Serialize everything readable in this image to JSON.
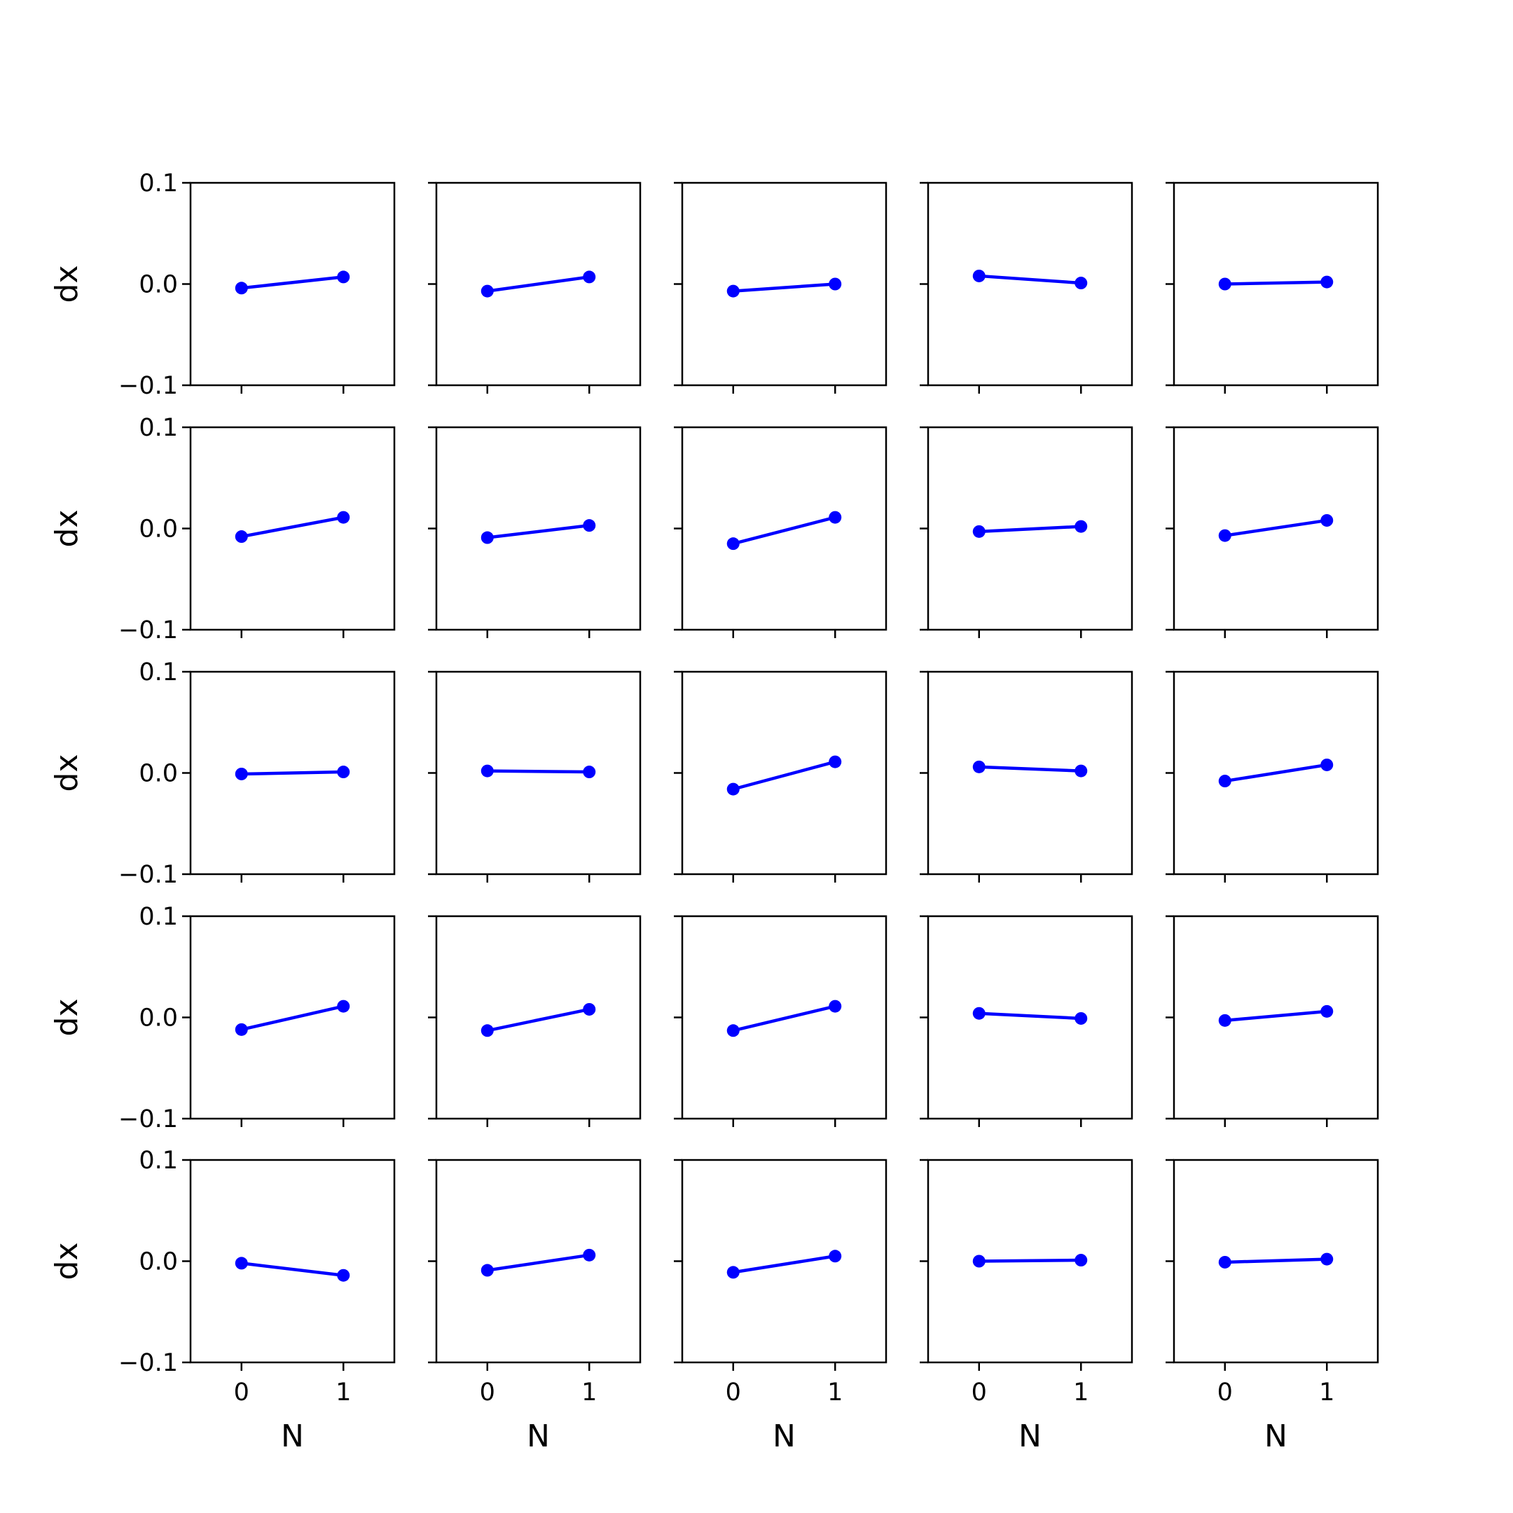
{
  "chart_data": {
    "type": "line",
    "layout": "5x5 grid of small multiples",
    "xlabel": "N",
    "ylabel": "dx",
    "x": [
      0,
      1
    ],
    "xticks": [
      0,
      1
    ],
    "xtick_labels": [
      "0",
      "1"
    ],
    "xlim": [
      -0.5,
      1.5
    ],
    "ylim": [
      -0.1,
      0.1
    ],
    "yticks": [
      -0.1,
      0.0,
      0.1
    ],
    "ytick_labels": [
      "−0.1",
      "0.0",
      "0.1"
    ],
    "grid": false,
    "series_color": "#0000ff",
    "marker": "circle",
    "panels": [
      [
        [
          -0.004,
          0.007
        ],
        [
          -0.007,
          0.007
        ],
        [
          -0.007,
          0.0
        ],
        [
          0.008,
          0.001
        ],
        [
          0.0,
          0.002
        ]
      ],
      [
        [
          -0.008,
          0.011
        ],
        [
          -0.009,
          0.003
        ],
        [
          -0.015,
          0.011
        ],
        [
          -0.003,
          0.002
        ],
        [
          -0.007,
          0.008
        ]
      ],
      [
        [
          -0.001,
          0.001
        ],
        [
          0.002,
          0.001
        ],
        [
          -0.016,
          0.011
        ],
        [
          0.006,
          0.002
        ],
        [
          -0.008,
          0.008
        ]
      ],
      [
        [
          -0.012,
          0.011
        ],
        [
          -0.013,
          0.008
        ],
        [
          -0.013,
          0.011
        ],
        [
          0.004,
          -0.001
        ],
        [
          -0.003,
          0.006
        ]
      ],
      [
        [
          -0.002,
          -0.014
        ],
        [
          -0.009,
          0.006
        ],
        [
          -0.011,
          0.005
        ],
        [
          0.0,
          0.001
        ],
        [
          -0.001,
          0.002
        ]
      ]
    ]
  }
}
